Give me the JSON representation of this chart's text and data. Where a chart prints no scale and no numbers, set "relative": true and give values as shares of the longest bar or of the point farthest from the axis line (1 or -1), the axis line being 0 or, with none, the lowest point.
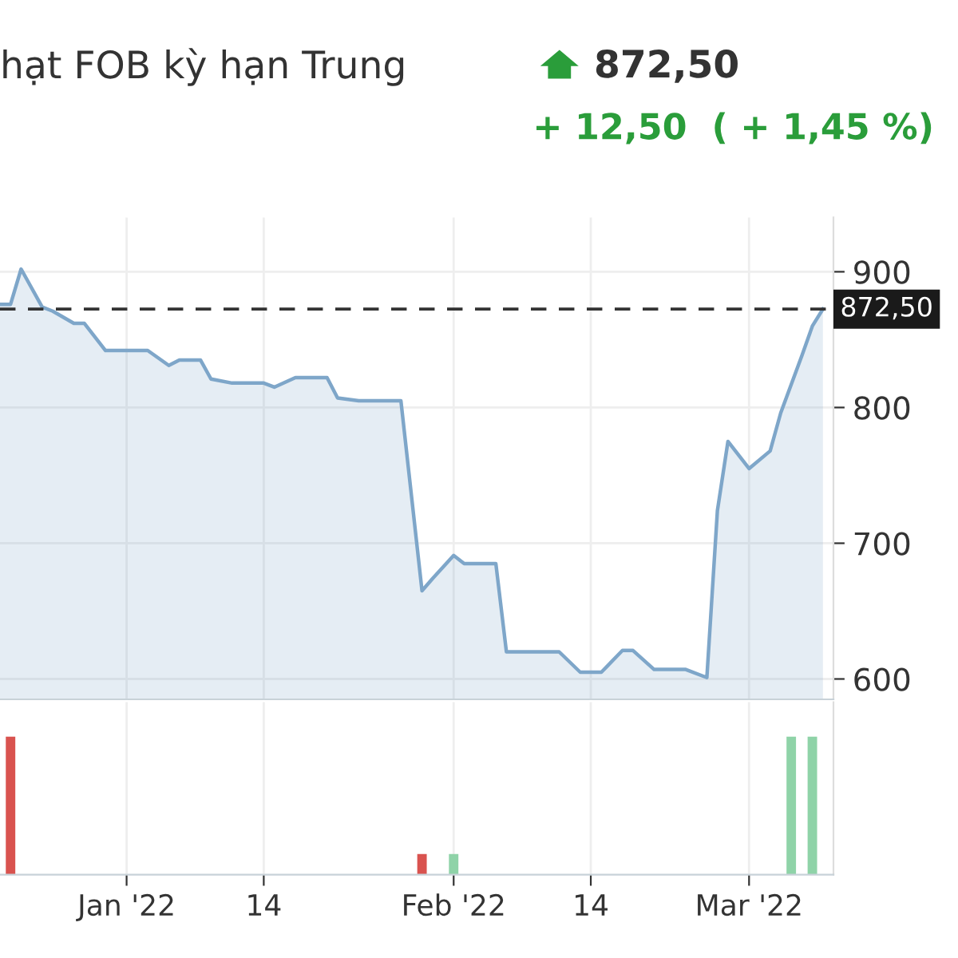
{
  "chart_data": [
    {
      "type": "area",
      "title": "hạt FOB kỳ hạn Trung",
      "annotations": [
        "872,50",
        "+ 12,50  ( + 1,45 %)"
      ],
      "x": [
        "2021-12-20",
        "2021-12-21",
        "2021-12-22",
        "2021-12-24",
        "2021-12-25",
        "2021-12-27",
        "2021-12-28",
        "2021-12-30",
        "2022-01-03",
        "2022-01-05",
        "2022-01-06",
        "2022-01-08",
        "2022-01-09",
        "2022-01-11",
        "2022-01-14",
        "2022-01-15",
        "2022-01-17",
        "2022-01-20",
        "2022-01-21",
        "2022-01-23",
        "2022-01-27",
        "2022-01-29",
        "2022-01-30",
        "2022-02-01",
        "2022-02-02",
        "2022-02-05",
        "2022-02-06",
        "2022-02-11",
        "2022-02-13",
        "2022-02-15",
        "2022-02-17",
        "2022-02-18",
        "2022-02-20",
        "2022-02-23",
        "2022-02-25",
        "2022-02-26",
        "2022-02-27",
        "2022-03-01",
        "2022-03-03",
        "2022-03-04",
        "2022-03-06",
        "2022-03-07",
        "2022-03-08"
      ],
      "series": [
        {
          "color": "#7ea6c9",
          "values": [
            876,
            876,
            902,
            874,
            871,
            862,
            862,
            842,
            842,
            831,
            835,
            835,
            821,
            818,
            818,
            815,
            822,
            822,
            807,
            805,
            805,
            665,
            674,
            691,
            685,
            685,
            620,
            620,
            605,
            605,
            621,
            621,
            607,
            607,
            601,
            724,
            775,
            755,
            768,
            796,
            838,
            860,
            872.5
          ]
        }
      ],
      "xlim": [
        "2021-12-20",
        "2022-03-09"
      ],
      "ylim": [
        585,
        940
      ],
      "xticks": [
        {
          "value": "2022-01-01",
          "label": null
        },
        {
          "value": "2022-01-14",
          "label": null
        },
        {
          "value": "2022-02-01",
          "label": null
        },
        {
          "value": "2022-02-14",
          "label": null
        },
        {
          "value": "2022-03-01",
          "label": null
        }
      ],
      "yticks": [
        600,
        700,
        800,
        900
      ],
      "ref_lines": [
        {
          "axis": "y",
          "value": 872.5,
          "label": "872,50",
          "color": "#333333",
          "line_style": "dashed"
        }
      ],
      "grid": true,
      "tick_labels": "y"
    },
    {
      "type": "bar",
      "relative": true,
      "x": [
        "2021-12-21",
        "2022-01-29",
        "2022-02-01",
        "2022-03-05",
        "2022-03-07"
      ],
      "values": [
        1,
        0.15,
        0.15,
        1,
        1
      ],
      "colors": [
        "#d9534f",
        "#d9534f",
        "#8fd3a8",
        "#8fd3a8",
        "#8fd3a8"
      ],
      "xlim": [
        "2021-12-20",
        "2022-03-09"
      ],
      "xticks": [
        {
          "value": "2022-01-01",
          "label": "Jan '22"
        },
        {
          "value": "2022-01-14",
          "label": "14"
        },
        {
          "value": "2022-02-01",
          "label": "Feb '22"
        },
        {
          "value": "2022-02-14",
          "label": "14"
        },
        {
          "value": "2022-03-01",
          "label": "Mar '22"
        }
      ],
      "grid": "x",
      "tick_labels": "x"
    }
  ]
}
